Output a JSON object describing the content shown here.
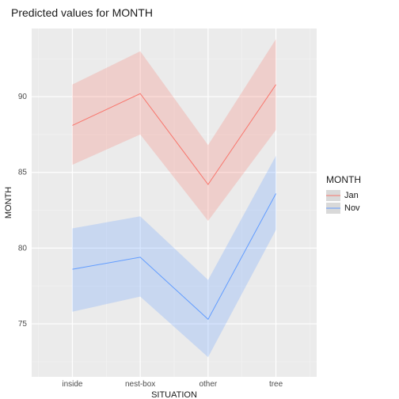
{
  "title": "Predicted values for MONTH",
  "chart": {
    "type": "line-ribbon",
    "ylabel": "MONTH",
    "xlabel": "SITUATION",
    "categories": [
      "inside",
      "nest-box",
      "other",
      "tree"
    ],
    "ylim": [
      71.5,
      94.5
    ],
    "yticks": [
      75,
      80,
      85,
      90
    ],
    "yticks_minor": [
      72.5,
      77.5,
      82.5,
      87.5,
      92.5
    ],
    "xticks_minor": [
      -0.5,
      0.5,
      1.5,
      2.5,
      3.5
    ],
    "background_color": "#ebebeb",
    "grid_color_major": "#ffffff",
    "grid_color_minor": "#f3f3f3",
    "label_fontsize": 11,
    "title_fontsize": 14,
    "tick_fontsize": 10,
    "line_width": 1.0,
    "ribbon_opacity": 0.25,
    "series": [
      {
        "name": "Jan",
        "color": "#f8766d",
        "values": [
          88.1,
          90.2,
          84.2,
          90.8
        ],
        "lower": [
          85.5,
          87.5,
          81.8,
          87.8
        ],
        "upper": [
          90.8,
          93.0,
          86.8,
          93.8
        ]
      },
      {
        "name": "Nov",
        "color": "#619cff",
        "values": [
          78.6,
          79.4,
          75.3,
          83.6
        ],
        "lower": [
          75.8,
          76.8,
          72.8,
          81.2
        ],
        "upper": [
          81.3,
          82.1,
          77.9,
          86.1
        ]
      }
    ]
  },
  "legend": {
    "title": "MONTH",
    "items": [
      {
        "label": "Jan",
        "color": "#f8766d"
      },
      {
        "label": "Nov",
        "color": "#619cff"
      }
    ],
    "key_bg": "#d9d9d9"
  }
}
